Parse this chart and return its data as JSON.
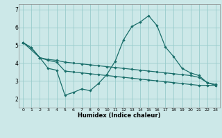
{
  "background_color": "#cce8e8",
  "grid_color": "#99cccc",
  "line_color": "#1a6e6a",
  "xlabel": "Humidex (Indice chaleur)",
  "xlim": [
    -0.5,
    23.5
  ],
  "ylim": [
    1.5,
    7.3
  ],
  "yticks": [
    2,
    3,
    4,
    5,
    6,
    7
  ],
  "xticks": [
    0,
    1,
    2,
    3,
    4,
    5,
    6,
    7,
    8,
    9,
    10,
    11,
    12,
    13,
    14,
    15,
    16,
    17,
    18,
    19,
    20,
    21,
    22,
    23
  ],
  "series1_x": [
    0,
    1,
    2,
    3,
    4,
    5,
    6,
    7,
    8,
    9,
    10,
    11,
    12,
    13,
    14,
    15,
    16,
    17,
    18,
    19,
    20,
    21,
    22,
    23
  ],
  "series1_y": [
    5.15,
    4.85,
    4.3,
    4.2,
    4.15,
    4.05,
    4.0,
    3.95,
    3.9,
    3.85,
    3.8,
    3.75,
    3.7,
    3.65,
    3.6,
    3.55,
    3.5,
    3.45,
    3.4,
    3.35,
    3.3,
    3.2,
    2.9,
    2.8
  ],
  "series2_x": [
    0,
    1,
    2,
    3,
    4,
    5,
    6,
    7,
    8,
    9,
    10,
    11,
    12,
    13,
    14,
    15,
    16,
    17,
    18,
    19,
    20,
    21,
    22,
    23
  ],
  "series2_y": [
    5.15,
    4.85,
    4.3,
    4.15,
    4.05,
    3.55,
    3.5,
    3.45,
    3.4,
    3.35,
    3.3,
    3.25,
    3.2,
    3.15,
    3.1,
    3.05,
    3.0,
    2.95,
    2.9,
    2.85,
    2.8,
    2.75,
    2.75,
    2.75
  ],
  "series3_x": [
    0,
    2,
    3,
    4,
    5,
    6,
    7,
    8,
    9,
    10,
    11,
    12,
    13,
    14,
    15,
    16,
    17,
    18,
    19,
    20,
    21,
    22,
    23
  ],
  "series3_y": [
    5.15,
    4.3,
    3.7,
    3.6,
    2.2,
    2.35,
    2.55,
    2.45,
    2.85,
    3.35,
    4.1,
    5.3,
    6.05,
    6.3,
    6.65,
    6.1,
    4.9,
    4.35,
    3.7,
    3.45,
    3.3,
    2.9,
    2.75
  ]
}
